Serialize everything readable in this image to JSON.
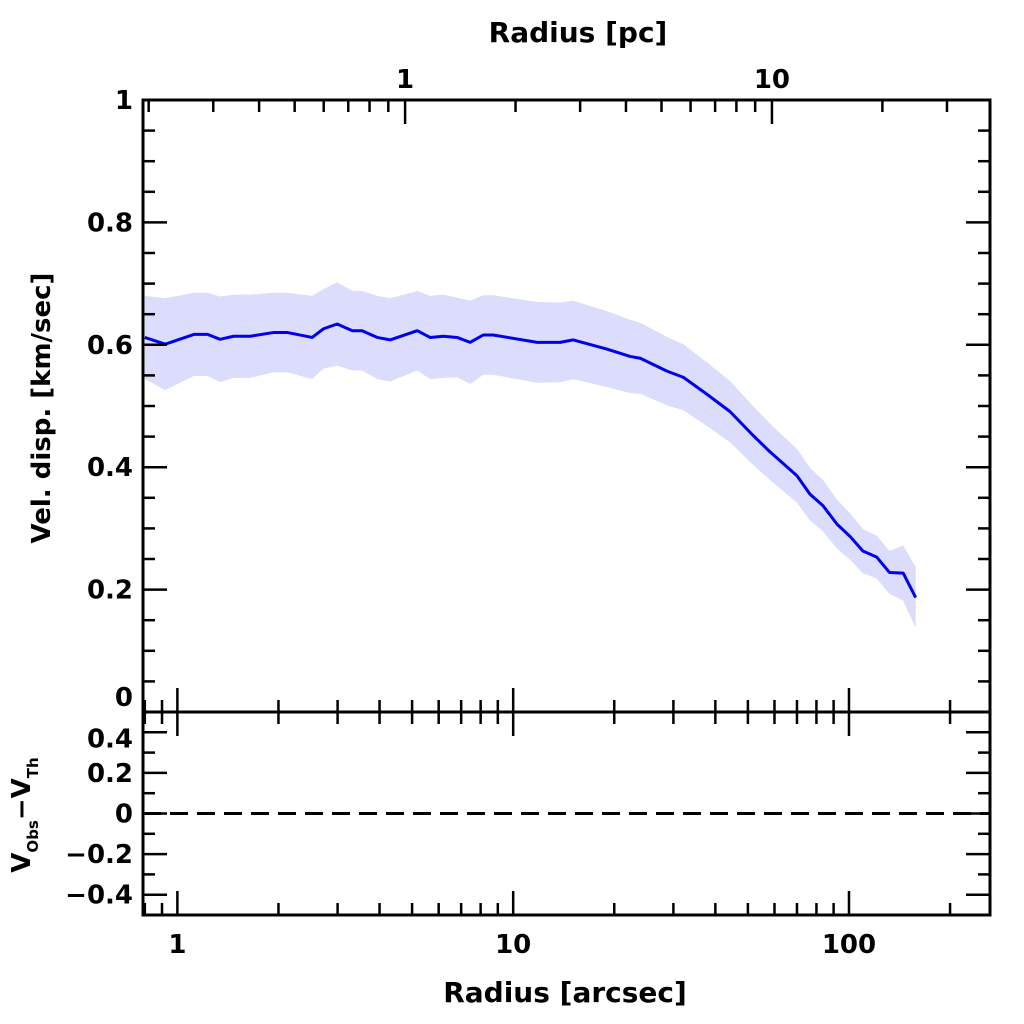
{
  "chart_data": [
    {
      "type": "line",
      "panel": "main",
      "xlabel": "Radius [arcsec]",
      "x2label": "Radius [pc]",
      "ylabel": "Vel. disp. [km/sec]",
      "xscale": "log",
      "xlim": [
        0.79,
        263
      ],
      "x2lim": [
        0.193,
        39.3
      ],
      "ylim": [
        0,
        1
      ],
      "xticks": [
        "1",
        "10",
        "100"
      ],
      "x2ticks": [
        "1",
        "10"
      ],
      "yticks": [
        "0",
        "0.2",
        "0.4",
        "0.6",
        "0.8",
        "1"
      ],
      "grid": false,
      "colors": {
        "line": "#0000ee",
        "band": "#dcdcfc"
      },
      "series": [
        {
          "x": [
            0.8,
            0.92,
            1.12,
            1.23,
            1.34,
            1.47,
            1.65,
            1.93,
            2.13,
            2.52,
            2.72,
            2.99,
            3.32,
            3.55,
            3.94,
            4.3,
            5.18,
            5.66,
            6.19,
            6.81,
            7.45,
            8.14,
            8.71,
            11.8,
            13.8,
            15.1,
            19.0,
            22.3,
            23.9,
            28.7,
            32.1,
            37.8,
            44.2,
            51.8,
            58.2,
            70.0,
            76.5,
            83.7,
            92.1,
            100.7,
            110,
            121,
            132,
            145,
            158
          ],
          "y": [
            0.612,
            0.601,
            0.617,
            0.617,
            0.609,
            0.614,
            0.614,
            0.62,
            0.62,
            0.612,
            0.626,
            0.634,
            0.623,
            0.623,
            0.612,
            0.608,
            0.623,
            0.612,
            0.614,
            0.612,
            0.604,
            0.616,
            0.616,
            0.604,
            0.604,
            0.608,
            0.593,
            0.581,
            0.578,
            0.557,
            0.547,
            0.519,
            0.491,
            0.452,
            0.425,
            0.386,
            0.356,
            0.337,
            0.307,
            0.287,
            0.263,
            0.253,
            0.228,
            0.227,
            0.187
          ],
          "err": [
            0.068,
            0.075,
            0.068,
            0.068,
            0.07,
            0.068,
            0.068,
            0.065,
            0.065,
            0.068,
            0.065,
            0.068,
            0.065,
            0.065,
            0.068,
            0.068,
            0.065,
            0.068,
            0.068,
            0.065,
            0.068,
            0.065,
            0.065,
            0.066,
            0.065,
            0.064,
            0.062,
            0.06,
            0.058,
            0.056,
            0.054,
            0.052,
            0.05,
            0.048,
            0.046,
            0.044,
            0.043,
            0.042,
            0.04,
            0.038,
            0.036,
            0.035,
            0.035,
            0.045,
            0.05
          ]
        }
      ]
    },
    {
      "type": "line",
      "panel": "residual",
      "ylabel": "V_Obs − V_Th",
      "ylabel_main": "V",
      "ylabel_sub1": "Obs",
      "ylabel_mid": "−V",
      "ylabel_sub2": "Th",
      "ylim": [
        -0.5,
        0.5
      ],
      "yticks": [
        "0.4",
        "0.2",
        "0",
        "−0.2",
        "−0.4"
      ],
      "reference_line": {
        "y": 0,
        "style": "dashed"
      }
    }
  ]
}
